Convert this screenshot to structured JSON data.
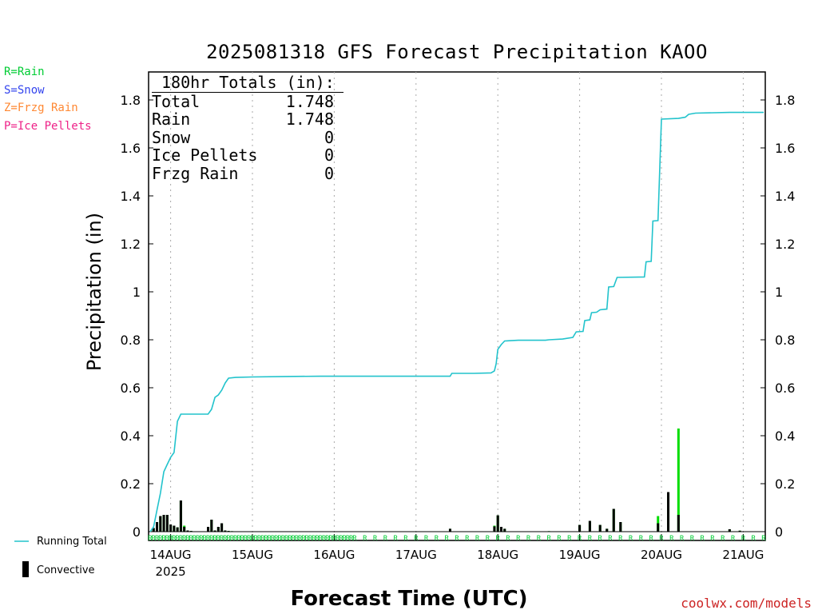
{
  "title": "2025081318 GFS Forecast Precipitation KAOO",
  "legend_types": [
    {
      "label": "R=Rain",
      "color": "#00cc33"
    },
    {
      "label": "S=Snow",
      "color": "#3344ee"
    },
    {
      "label": "Z=Frzg Rain",
      "color": "#ff8833"
    },
    {
      "label": "P=Ice Pellets",
      "color": "#ee2288"
    }
  ],
  "totals_box": {
    "header": "180hr Totals (in):",
    "rows": [
      {
        "label": "Total",
        "value": "1.748"
      },
      {
        "label": "Rain",
        "value": "1.748"
      },
      {
        "label": "Snow",
        "value": "0"
      },
      {
        "label": "Ice Pellets",
        "value": "0"
      },
      {
        "label": "Frzg Rain",
        "value": "0"
      }
    ]
  },
  "key": {
    "running_total": "Running Total",
    "convective": "Convective"
  },
  "credit": "coolwx.com/models",
  "colors": {
    "running_total": "#22c3cc",
    "bar_total": "#00dd00",
    "bar_convective": "#000000",
    "precip_code": "#00cc33",
    "grid": "#aaaaaa"
  },
  "chart_data": {
    "type": "bar",
    "xlabel": "Forecast Time (UTC)",
    "ylabel": "Precipitation (in)",
    "ylim": [
      0,
      1.9
    ],
    "yticks": [
      0,
      0.2,
      0.4,
      0.6,
      0.8,
      1,
      1.2,
      1.4,
      1.6,
      1.8
    ],
    "ytick_labels": [
      "0",
      "0.2",
      "0.4",
      "0.6",
      "0.8",
      "1",
      "1.2",
      "1.4",
      "1.6",
      "1.8"
    ],
    "xlim_hours": [
      0,
      180
    ],
    "xticks": [
      {
        "hour": 6,
        "label": "14AUG",
        "sub": "2025"
      },
      {
        "hour": 30,
        "label": "15AUG",
        "sub": ""
      },
      {
        "hour": 54,
        "label": "16AUG",
        "sub": ""
      },
      {
        "hour": 78,
        "label": "17AUG",
        "sub": ""
      },
      {
        "hour": 102,
        "label": "18AUG",
        "sub": ""
      },
      {
        "hour": 126,
        "label": "19AUG",
        "sub": ""
      },
      {
        "hour": 150,
        "label": "20AUG",
        "sub": ""
      },
      {
        "hour": 174,
        "label": "21AUG",
        "sub": ""
      }
    ],
    "precip_code": "R",
    "series": [
      {
        "name": "Running Total",
        "type": "line",
        "points": [
          [
            0,
            0
          ],
          [
            1,
            0.02
          ],
          [
            2,
            0.09
          ],
          [
            3,
            0.16
          ],
          [
            4,
            0.25
          ],
          [
            5,
            0.28
          ],
          [
            6,
            0.31
          ],
          [
            7,
            0.33
          ],
          [
            8,
            0.46
          ],
          [
            9,
            0.49
          ],
          [
            10,
            0.49
          ],
          [
            12,
            0.49
          ],
          [
            14,
            0.49
          ],
          [
            17,
            0.49
          ],
          [
            18,
            0.51
          ],
          [
            19,
            0.56
          ],
          [
            20,
            0.57
          ],
          [
            21,
            0.59
          ],
          [
            22,
            0.62
          ],
          [
            23,
            0.64
          ],
          [
            25,
            0.643
          ],
          [
            30,
            0.645
          ],
          [
            40,
            0.647
          ],
          [
            50,
            0.648
          ],
          [
            60,
            0.648
          ],
          [
            70,
            0.648
          ],
          [
            80,
            0.648
          ],
          [
            88,
            0.648
          ],
          [
            88.5,
            0.66
          ],
          [
            95,
            0.66
          ],
          [
            100,
            0.662
          ],
          [
            101,
            0.67
          ],
          [
            101.5,
            0.7
          ],
          [
            102,
            0.76
          ],
          [
            103,
            0.78
          ],
          [
            104,
            0.795
          ],
          [
            108,
            0.798
          ],
          [
            112,
            0.798
          ],
          [
            116,
            0.798
          ],
          [
            117,
            0.8
          ],
          [
            121,
            0.803
          ],
          [
            124,
            0.81
          ],
          [
            125,
            0.833
          ],
          [
            127,
            0.835
          ],
          [
            127.5,
            0.88
          ],
          [
            129,
            0.883
          ],
          [
            129.5,
            0.913
          ],
          [
            131,
            0.915
          ],
          [
            132,
            0.925
          ],
          [
            134,
            0.928
          ],
          [
            134.5,
            1.02
          ],
          [
            136,
            1.022
          ],
          [
            137,
            1.06
          ],
          [
            145,
            1.062
          ],
          [
            145.5,
            1.125
          ],
          [
            147,
            1.127
          ],
          [
            147.5,
            1.295
          ],
          [
            149,
            1.297
          ],
          [
            150,
            1.72
          ],
          [
            155,
            1.723
          ],
          [
            157,
            1.728
          ],
          [
            158,
            1.74
          ],
          [
            160,
            1.745
          ],
          [
            170,
            1.748
          ],
          [
            180,
            1.748
          ]
        ]
      },
      {
        "name": "",
        "type": "bar",
        "note_total_bars": true,
        "hours": [
          1,
          2,
          3,
          4,
          5,
          6,
          7,
          8,
          9,
          10,
          11,
          12,
          17,
          18,
          19,
          20,
          21,
          22,
          23,
          24,
          88,
          101,
          102,
          103,
          104,
          117,
          126,
          129,
          132,
          134,
          136,
          138,
          149,
          152,
          155,
          170,
          173
        ],
        "total": [
          0.015,
          0.04,
          0.065,
          0.07,
          0.07,
          0.03,
          0.025,
          0.018,
          0.13,
          0.025,
          0.005,
          0.003,
          0.02,
          0.05,
          0.005,
          0.02,
          0.035,
          0.005,
          0.003,
          0.002,
          0.012,
          0.025,
          0.068,
          0.02,
          0.012,
          0.002,
          0.028,
          0.045,
          0.028,
          0.012,
          0.095,
          0.04,
          0.065,
          0.165,
          0.43,
          0.01,
          0.004
        ],
        "convective": [
          0.015,
          0.04,
          0.065,
          0.07,
          0.07,
          0.03,
          0.025,
          0.018,
          0.13,
          0.02,
          0.005,
          0.003,
          0.02,
          0.05,
          0.005,
          0.02,
          0.035,
          0.005,
          0.003,
          0.002,
          0.012,
          0.022,
          0.068,
          0.02,
          0.012,
          0.002,
          0.028,
          0.045,
          0.028,
          0.012,
          0.095,
          0.04,
          0.035,
          0.165,
          0.07,
          0.01,
          0.004
        ]
      }
    ]
  }
}
